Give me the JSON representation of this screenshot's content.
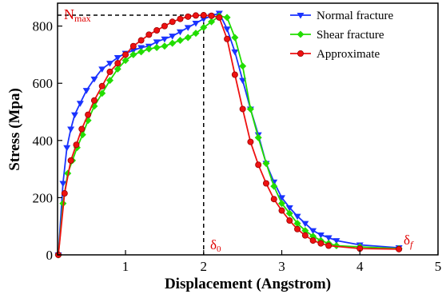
{
  "chart_data": {
    "type": "line",
    "xlabel": "Displacement (Angstrom)",
    "ylabel": "Stress (Mpa)",
    "xlim": [
      0.13,
      5
    ],
    "ylim": [
      0,
      880
    ],
    "xticks": [
      1,
      2,
      3,
      4,
      5
    ],
    "yticks": [
      0,
      200,
      400,
      600,
      800
    ],
    "legend_position": "top-right",
    "annotations": {
      "nmax_main": "N",
      "nmax_sub": "max",
      "delta0_main": "δ",
      "delta0_sub": "0",
      "deltaf_main": "δ",
      "deltaf_sub": "f",
      "nmax_value": 838,
      "delta0_x": 2.0
    },
    "series": [
      {
        "name": "Normal fracture",
        "color": "#1a33ff",
        "marker": "triangle-down",
        "x": [
          0.14,
          0.2,
          0.25,
          0.3,
          0.35,
          0.42,
          0.5,
          0.6,
          0.7,
          0.8,
          0.9,
          1.0,
          1.1,
          1.2,
          1.3,
          1.4,
          1.5,
          1.6,
          1.7,
          1.8,
          1.9,
          2.0,
          2.1,
          2.2,
          2.3,
          2.4,
          2.5,
          2.6,
          2.7,
          2.8,
          2.9,
          3.0,
          3.1,
          3.2,
          3.3,
          3.4,
          3.5,
          3.6,
          3.7,
          4.0,
          4.5
        ],
        "y": [
          0,
          250,
          375,
          440,
          490,
          530,
          575,
          615,
          650,
          670,
          690,
          705,
          715,
          725,
          730,
          745,
          755,
          765,
          780,
          795,
          810,
          825,
          835,
          845,
          790,
          710,
          610,
          510,
          420,
          320,
          255,
          200,
          165,
          135,
          110,
          85,
          70,
          60,
          50,
          35,
          25
        ]
      },
      {
        "name": "Shear fracture",
        "color": "#22dd00",
        "marker": "diamond",
        "x": [
          0.14,
          0.2,
          0.26,
          0.32,
          0.38,
          0.45,
          0.52,
          0.6,
          0.7,
          0.8,
          0.9,
          1.0,
          1.1,
          1.2,
          1.3,
          1.4,
          1.5,
          1.6,
          1.7,
          1.8,
          1.9,
          2.0,
          2.1,
          2.2,
          2.3,
          2.4,
          2.5,
          2.6,
          2.7,
          2.8,
          2.9,
          3.0,
          3.1,
          3.2,
          3.3,
          3.4,
          3.5,
          3.6,
          3.7,
          4.0,
          4.5
        ],
        "y": [
          0,
          180,
          285,
          330,
          375,
          420,
          470,
          520,
          565,
          610,
          650,
          680,
          700,
          710,
          720,
          725,
          730,
          740,
          750,
          760,
          775,
          795,
          815,
          835,
          830,
          760,
          660,
          510,
          410,
          320,
          240,
          180,
          145,
          110,
          85,
          65,
          50,
          40,
          32,
          28,
          22
        ]
      },
      {
        "name": "Approximate",
        "color": "#ee1111",
        "marker": "circle",
        "x": [
          0.14,
          0.22,
          0.3,
          0.37,
          0.44,
          0.52,
          0.6,
          0.7,
          0.8,
          0.9,
          1.0,
          1.1,
          1.2,
          1.3,
          1.4,
          1.5,
          1.6,
          1.7,
          1.8,
          1.9,
          2.0,
          2.1,
          2.2,
          2.3,
          2.4,
          2.5,
          2.6,
          2.7,
          2.8,
          2.9,
          3.0,
          3.1,
          3.2,
          3.3,
          3.4,
          3.5,
          3.6,
          4.0,
          4.5
        ],
        "y": [
          0,
          215,
          330,
          385,
          440,
          490,
          540,
          590,
          640,
          670,
          700,
          730,
          750,
          770,
          785,
          800,
          815,
          825,
          833,
          837,
          838,
          836,
          830,
          755,
          630,
          510,
          395,
          315,
          250,
          195,
          155,
          120,
          90,
          68,
          50,
          40,
          32,
          22,
          20
        ]
      }
    ]
  }
}
